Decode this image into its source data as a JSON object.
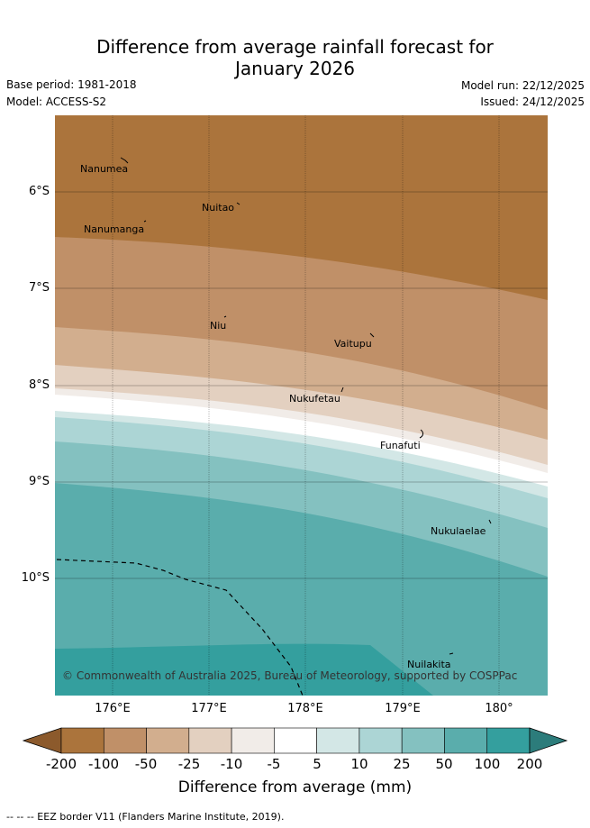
{
  "title_line1": "Difference from average rainfall forecast for",
  "title_line2": "January 2026",
  "meta": {
    "base_period": "Base period: 1981-2018",
    "model": "Model: ACCESS-S2",
    "model_run": "Model run: 22/12/2025",
    "issued": "Issued: 24/12/2025"
  },
  "lat_labels": [
    "6°S",
    "7°S",
    "8°S",
    "9°S",
    "10°S"
  ],
  "lon_labels": [
    "176°E",
    "177°E",
    "178°E",
    "179°E",
    "180°"
  ],
  "islands": [
    "Nanumea",
    "Nuitao",
    "Nanumanga",
    "Niu",
    "Vaitupu",
    "Nukufetau",
    "Funafuti",
    "Nukulaelae",
    "Nuilakita"
  ],
  "copyright": "© Commonwealth of Australia 2025, Bureau of Meteorology, supported by COSPPac",
  "colorbar": {
    "ticks": [
      "-200",
      "-100",
      "-50",
      "-25",
      "-10",
      "-5",
      "5",
      "10",
      "25",
      "50",
      "100",
      "200"
    ],
    "colors": [
      "#8c5a2c",
      "#ab743c",
      "#c09068",
      "#d2ae8e",
      "#e3d0c0",
      "#f1ece8",
      "#ffffff",
      "#d3e7e6",
      "#acd5d5",
      "#84c1c0",
      "#5aadac",
      "#349f9e",
      "#2c7c7b"
    ],
    "title": "Difference from average (mm)"
  },
  "footer": "--  --  -- EEZ border V11 (Flanders Marine Institute, 2019)."
}
